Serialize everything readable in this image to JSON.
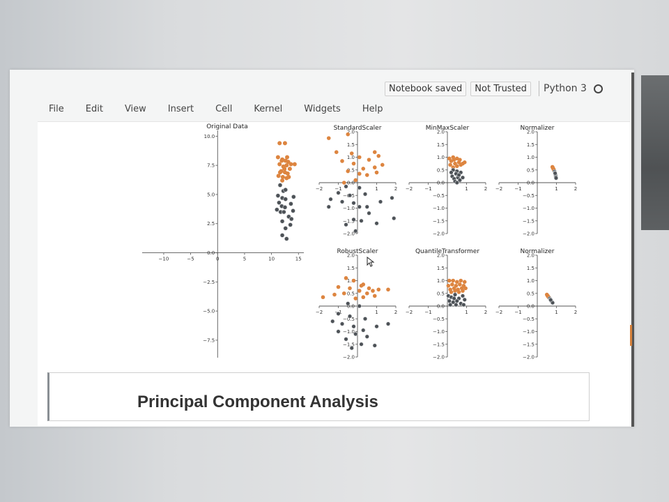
{
  "header": {
    "notebook_status": "Notebook saved",
    "trust_status": "Not Trusted",
    "kernel_name": "Python 3"
  },
  "menu": {
    "items": [
      "File",
      "Edit",
      "View",
      "Insert",
      "Cell",
      "Kernel",
      "Widgets",
      "Help"
    ]
  },
  "markdown_cell": {
    "heading": "Principal Component Analysis"
  },
  "colors": {
    "orange": "#dd8540",
    "dark": "#4d5257",
    "axis": "#555555"
  },
  "chart_data": [
    {
      "type": "scatter",
      "title": "Original Data",
      "xlim": [
        -14,
        16
      ],
      "ylim": [
        -9,
        10.5
      ],
      "xticks": [
        -10,
        -5,
        0,
        5,
        10,
        15
      ],
      "yticks": [
        10.0,
        7.5,
        5.0,
        2.5,
        0.0,
        -2.5,
        -5.0,
        -7.5
      ],
      "series": [
        {
          "color": "orange",
          "points": [
            [
              11.5,
              9.4
            ],
            [
              12.5,
              9.4
            ],
            [
              11.2,
              8.2
            ],
            [
              12.0,
              8.0
            ],
            [
              12.6,
              7.9
            ],
            [
              13.1,
              7.8
            ],
            [
              11.5,
              7.6
            ],
            [
              12.2,
              7.4
            ],
            [
              12.8,
              7.5
            ],
            [
              13.4,
              7.2
            ],
            [
              11.8,
              7.0
            ],
            [
              12.5,
              6.9
            ],
            [
              13.0,
              6.8
            ],
            [
              11.3,
              6.6
            ],
            [
              12.1,
              6.5
            ],
            [
              12.8,
              6.4
            ],
            [
              13.6,
              7.6
            ],
            [
              11.9,
              7.9
            ],
            [
              12.4,
              7.2
            ],
            [
              13.2,
              6.5
            ],
            [
              14.3,
              7.6
            ],
            [
              11.6,
              6.9
            ],
            [
              12.9,
              8.2
            ],
            [
              12.0,
              6.2
            ]
          ]
        },
        {
          "color": "dark",
          "points": [
            [
              11.6,
              5.8
            ],
            [
              12.2,
              5.3
            ],
            [
              11.2,
              4.9
            ],
            [
              12.0,
              4.7
            ],
            [
              12.6,
              4.6
            ],
            [
              11.4,
              4.3
            ],
            [
              11.9,
              4.0
            ],
            [
              12.5,
              3.9
            ],
            [
              11.0,
              3.7
            ],
            [
              11.7,
              3.5
            ],
            [
              12.3,
              3.5
            ],
            [
              13.6,
              4.2
            ],
            [
              14.1,
              4.8
            ],
            [
              13.2,
              3.1
            ],
            [
              12.0,
              2.7
            ],
            [
              13.7,
              2.9
            ],
            [
              13.5,
              2.4
            ],
            [
              12.6,
              2.1
            ],
            [
              12.0,
              1.5
            ],
            [
              12.8,
              1.2
            ],
            [
              14.0,
              3.6
            ],
            [
              12.6,
              5.4
            ]
          ]
        }
      ]
    },
    {
      "type": "scatter",
      "title": "StandardScaler",
      "xlim": [
        -2,
        2
      ],
      "ylim": [
        -2,
        2
      ],
      "xticks": [
        -2,
        -1,
        0,
        1,
        2
      ],
      "yticks": [
        2.0,
        1.5,
        1.0,
        0.5,
        0.0,
        -0.5,
        -1.0,
        -1.5,
        -2.0
      ],
      "series": [
        {
          "color": "orange",
          "points": [
            [
              -1.5,
              1.75
            ],
            [
              -0.5,
              1.9
            ],
            [
              -1.1,
              1.2
            ],
            [
              -0.3,
              1.15
            ],
            [
              0.1,
              1.0
            ],
            [
              0.9,
              1.2
            ],
            [
              1.1,
              1.05
            ],
            [
              0.6,
              0.9
            ],
            [
              1.3,
              0.7
            ],
            [
              0.9,
              0.6
            ],
            [
              -0.8,
              0.85
            ],
            [
              -0.2,
              0.75
            ],
            [
              0.3,
              0.55
            ],
            [
              1.0,
              0.4
            ],
            [
              -0.5,
              0.45
            ],
            [
              0.1,
              0.35
            ],
            [
              -0.7,
              0.0
            ],
            [
              0.5,
              0.3
            ],
            [
              -0.1,
              0.1
            ]
          ]
        },
        {
          "color": "dark",
          "points": [
            [
              -0.6,
              -0.15
            ],
            [
              0.1,
              -0.2
            ],
            [
              -1.0,
              -0.4
            ],
            [
              -0.4,
              -0.5
            ],
            [
              0.4,
              -0.45
            ],
            [
              -1.4,
              -0.65
            ],
            [
              -0.8,
              -0.75
            ],
            [
              -0.2,
              -0.8
            ],
            [
              0.5,
              -0.95
            ],
            [
              1.2,
              -0.75
            ],
            [
              1.8,
              -0.6
            ],
            [
              -1.5,
              -0.95
            ],
            [
              0.6,
              -1.2
            ],
            [
              -0.2,
              -1.45
            ],
            [
              0.2,
              -1.5
            ],
            [
              1.0,
              -1.6
            ],
            [
              -0.6,
              -1.65
            ],
            [
              -0.1,
              -1.9
            ],
            [
              1.9,
              -1.4
            ],
            [
              0.1,
              -0.95
            ]
          ]
        }
      ]
    },
    {
      "type": "scatter",
      "title": "MinMaxScaler",
      "xlim": [
        -2,
        2
      ],
      "ylim": [
        -2,
        2
      ],
      "xticks": [
        -2,
        -1,
        0,
        1,
        2
      ],
      "yticks": [
        2.0,
        1.5,
        1.0,
        0.5,
        0.0,
        -0.5,
        -1.0,
        -1.5,
        -2.0
      ],
      "series": [
        {
          "color": "orange",
          "points": [
            [
              0.1,
              0.95
            ],
            [
              0.3,
              1.0
            ],
            [
              0.5,
              0.95
            ],
            [
              0.2,
              0.85
            ],
            [
              0.6,
              0.8
            ],
            [
              0.4,
              0.75
            ],
            [
              0.7,
              0.7
            ],
            [
              0.15,
              0.7
            ],
            [
              0.8,
              0.75
            ],
            [
              0.5,
              0.65
            ],
            [
              0.3,
              0.6
            ],
            [
              0.9,
              0.8
            ],
            [
              0.35,
              0.9
            ],
            [
              0.65,
              0.9
            ]
          ]
        },
        {
          "color": "dark",
          "points": [
            [
              0.3,
              0.5
            ],
            [
              0.5,
              0.45
            ],
            [
              0.2,
              0.4
            ],
            [
              0.45,
              0.35
            ],
            [
              0.7,
              0.4
            ],
            [
              0.25,
              0.25
            ],
            [
              0.55,
              0.2
            ],
            [
              0.6,
              0.3
            ],
            [
              0.35,
              0.15
            ],
            [
              0.8,
              0.2
            ],
            [
              0.4,
              0.05
            ],
            [
              0.65,
              0.1
            ],
            [
              0.5,
              0.0
            ]
          ]
        }
      ]
    },
    {
      "type": "scatter",
      "title": "Normalizer",
      "xlim": [
        -2,
        2
      ],
      "ylim": [
        -2,
        2
      ],
      "xticks": [
        -2,
        -1,
        0,
        1,
        2
      ],
      "yticks": [
        2.0,
        1.5,
        1.0,
        0.5,
        0.0,
        -0.5,
        -1.0,
        -1.5,
        -2.0
      ],
      "series": [
        {
          "color": "orange",
          "points": [
            [
              0.8,
              0.6
            ],
            [
              0.82,
              0.57
            ],
            [
              0.85,
              0.53
            ],
            [
              0.87,
              0.49
            ],
            [
              0.88,
              0.47
            ],
            [
              0.86,
              0.51
            ],
            [
              0.79,
              0.62
            ]
          ]
        },
        {
          "color": "dark",
          "points": [
            [
              0.9,
              0.44
            ],
            [
              0.92,
              0.39
            ],
            [
              0.94,
              0.34
            ],
            [
              0.95,
              0.3
            ],
            [
              0.96,
              0.27
            ],
            [
              0.97,
              0.22
            ],
            [
              0.98,
              0.18
            ],
            [
              0.93,
              0.37
            ]
          ]
        }
      ]
    },
    {
      "type": "scatter",
      "title": "RobustScaler",
      "xlim": [
        -2,
        2
      ],
      "ylim": [
        -2,
        2
      ],
      "xticks": [
        -2,
        -1,
        0,
        1,
        2
      ],
      "yticks": [
        2.0,
        1.5,
        1.0,
        0.5,
        0.0,
        -0.5,
        -1.0,
        -1.5,
        -2.0
      ],
      "series": [
        {
          "color": "orange",
          "points": [
            [
              -0.6,
              1.1
            ],
            [
              -0.2,
              1.0
            ],
            [
              0.3,
              0.85
            ],
            [
              -1.0,
              0.75
            ],
            [
              -0.4,
              0.7
            ],
            [
              0.1,
              0.6
            ],
            [
              0.6,
              0.7
            ],
            [
              1.1,
              0.65
            ],
            [
              1.6,
              0.65
            ],
            [
              0.5,
              0.5
            ],
            [
              -0.7,
              0.5
            ],
            [
              0.9,
              0.4
            ],
            [
              -1.2,
              0.45
            ],
            [
              0.3,
              0.35
            ],
            [
              -0.1,
              0.3
            ],
            [
              -1.8,
              0.35
            ],
            [
              0.8,
              0.6
            ],
            [
              0.2,
              0.8
            ]
          ]
        },
        {
          "color": "dark",
          "points": [
            [
              -0.5,
              0.1
            ],
            [
              0.1,
              0.0
            ],
            [
              -1.0,
              -0.3
            ],
            [
              -0.4,
              -0.4
            ],
            [
              0.4,
              -0.5
            ],
            [
              -1.3,
              -0.6
            ],
            [
              -0.8,
              -0.7
            ],
            [
              -0.2,
              -0.8
            ],
            [
              0.3,
              -0.95
            ],
            [
              1.0,
              -0.8
            ],
            [
              1.6,
              -0.7
            ],
            [
              -1.0,
              -1.0
            ],
            [
              0.2,
              -1.5
            ],
            [
              -0.3,
              -1.65
            ],
            [
              0.9,
              -1.55
            ],
            [
              -0.6,
              -1.3
            ],
            [
              0.5,
              -1.2
            ],
            [
              -0.1,
              -1.1
            ]
          ]
        }
      ]
    },
    {
      "type": "scatter",
      "title": "QuantileTransformer",
      "xlim": [
        -2,
        2
      ],
      "ylim": [
        -2,
        2
      ],
      "xticks": [
        -2,
        -1,
        0,
        1,
        2
      ],
      "yticks": [
        2.0,
        1.5,
        1.0,
        0.5,
        0.0,
        -0.5,
        -1.0,
        -1.5,
        -2.0
      ],
      "series": [
        {
          "color": "orange",
          "points": [
            [
              0.1,
              1.0
            ],
            [
              0.3,
              1.0
            ],
            [
              0.5,
              0.95
            ],
            [
              0.7,
              1.0
            ],
            [
              0.9,
              0.95
            ],
            [
              0.05,
              0.8
            ],
            [
              0.25,
              0.85
            ],
            [
              0.45,
              0.8
            ],
            [
              0.65,
              0.85
            ],
            [
              0.85,
              0.8
            ],
            [
              0.15,
              0.65
            ],
            [
              0.35,
              0.7
            ],
            [
              0.55,
              0.65
            ],
            [
              0.75,
              0.7
            ],
            [
              0.95,
              0.7
            ],
            [
              0.2,
              0.55
            ],
            [
              0.6,
              0.55
            ],
            [
              0.8,
              0.6
            ],
            [
              0.4,
              0.6
            ]
          ]
        },
        {
          "color": "dark",
          "points": [
            [
              0.05,
              0.4
            ],
            [
              0.2,
              0.35
            ],
            [
              0.4,
              0.45
            ],
            [
              0.6,
              0.3
            ],
            [
              0.8,
              0.4
            ],
            [
              0.1,
              0.2
            ],
            [
              0.3,
              0.15
            ],
            [
              0.5,
              0.2
            ],
            [
              0.7,
              0.1
            ],
            [
              0.9,
              0.25
            ],
            [
              0.15,
              0.05
            ],
            [
              0.45,
              0.05
            ],
            [
              0.85,
              0.05
            ],
            [
              0.35,
              0.3
            ]
          ]
        }
      ]
    },
    {
      "type": "scatter",
      "title": "Normalizer",
      "xlim": [
        -2,
        2
      ],
      "ylim": [
        -2,
        2
      ],
      "xticks": [
        -2,
        -1,
        0,
        1,
        2
      ],
      "yticks": [
        2.0,
        1.5,
        1.0,
        0.5,
        0.0,
        -0.5,
        -1.0,
        -1.5,
        -2.0
      ],
      "series": [
        {
          "color": "orange",
          "points": [
            [
              0.5,
              0.45
            ],
            [
              0.53,
              0.41
            ],
            [
              0.56,
              0.38
            ],
            [
              0.6,
              0.34
            ],
            [
              0.55,
              0.4
            ],
            [
              0.62,
              0.33
            ]
          ]
        },
        {
          "color": "dark",
          "points": [
            [
              0.65,
              0.3
            ],
            [
              0.68,
              0.26
            ],
            [
              0.71,
              0.22
            ],
            [
              0.74,
              0.19
            ],
            [
              0.77,
              0.16
            ],
            [
              0.8,
              0.13
            ],
            [
              0.7,
              0.24
            ]
          ]
        }
      ]
    }
  ]
}
